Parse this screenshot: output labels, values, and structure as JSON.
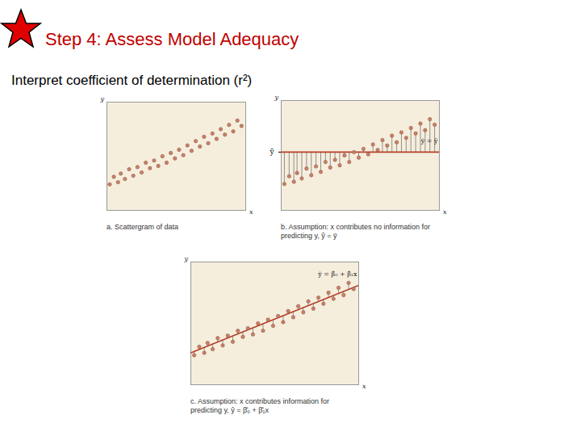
{
  "header": {
    "title": "Step 4:  Assess Model Adequacy",
    "subtitle": "Interpret coefficient of determination (r²)"
  },
  "chart_data": [
    {
      "type": "scatter",
      "caption": "a. Scattergram of data",
      "x_label": "x",
      "y_label": "y",
      "x": [
        0.2,
        0.5,
        0.8,
        1.0,
        1.3,
        1.6,
        1.9,
        2.2,
        2.5,
        2.8,
        3.1,
        3.4,
        3.7,
        4.0,
        4.3,
        4.6,
        4.9,
        5.2,
        5.5,
        5.8,
        6.1,
        6.4,
        6.7,
        7.0,
        7.3,
        7.6,
        7.9,
        8.2,
        8.5,
        8.8,
        9.1,
        9.4,
        9.7
      ],
      "values": [
        2.4,
        3.1,
        2.6,
        3.4,
        2.9,
        3.8,
        3.2,
        4.0,
        3.5,
        4.4,
        3.9,
        4.6,
        4.1,
        5.0,
        4.4,
        5.3,
        4.8,
        5.6,
        5.1,
        6.0,
        5.5,
        6.4,
        5.9,
        6.8,
        6.2,
        7.1,
        6.6,
        7.5,
        7.0,
        7.9,
        7.3,
        8.3,
        7.8
      ],
      "xlim": [
        0,
        10
      ],
      "ylim": [
        0,
        10
      ],
      "xticks": [],
      "yticks": [],
      "tick_labels": false,
      "color": "#c8826a",
      "marker": "circle"
    },
    {
      "type": "regression",
      "caption": "b. Assumption: x contributes no information for predicting y, ŷ = ȳ",
      "x_label": "x",
      "y_label": "y",
      "x": [
        0.2,
        0.5,
        0.8,
        1.0,
        1.3,
        1.6,
        1.9,
        2.2,
        2.5,
        2.8,
        3.1,
        3.4,
        3.7,
        4.0,
        4.3,
        4.6,
        4.9,
        5.2,
        5.5,
        5.8,
        6.1,
        6.4,
        6.7,
        7.0,
        7.3,
        7.6,
        7.9,
        8.2,
        8.5,
        8.8,
        9.1,
        9.4,
        9.7
      ],
      "values": [
        2.4,
        3.1,
        2.6,
        3.4,
        2.9,
        3.8,
        3.2,
        4.0,
        3.5,
        4.4,
        3.9,
        4.6,
        4.1,
        5.0,
        4.4,
        5.3,
        4.8,
        5.6,
        5.1,
        6.0,
        5.5,
        6.4,
        5.9,
        6.8,
        6.2,
        7.1,
        6.6,
        7.5,
        7.0,
        7.9,
        7.3,
        8.3,
        7.8
      ],
      "fit": {
        "x": [
          0,
          10
        ],
        "y": [
          5.3,
          5.3
        ],
        "label": "ŷ = ȳ"
      },
      "xlim": [
        0,
        10
      ],
      "ylim": [
        0,
        10
      ],
      "xticks": [],
      "yticks": [
        {
          "value": 5.3,
          "label": "ȳ"
        }
      ],
      "tick_labels": "y",
      "color": "#c8826a",
      "marker": "circle"
    },
    {
      "type": "regression",
      "caption": "c. Assumption: x contributes information for predicting y, ŷ = β̂₀ + β̂₁x",
      "x_label": "x",
      "y_label": "y",
      "x": [
        0.2,
        0.5,
        0.8,
        1.0,
        1.3,
        1.6,
        1.9,
        2.2,
        2.5,
        2.8,
        3.1,
        3.4,
        3.7,
        4.0,
        4.3,
        4.6,
        4.9,
        5.2,
        5.5,
        5.8,
        6.1,
        6.4,
        6.7,
        7.0,
        7.3,
        7.6,
        7.9,
        8.2,
        8.5,
        8.8,
        9.1,
        9.4,
        9.7
      ],
      "values": [
        2.4,
        3.1,
        2.6,
        3.4,
        2.9,
        3.8,
        3.2,
        4.0,
        3.5,
        4.4,
        3.9,
        4.6,
        4.1,
        5.0,
        4.4,
        5.3,
        4.8,
        5.6,
        5.1,
        6.0,
        5.5,
        6.4,
        5.9,
        6.8,
        6.2,
        7.1,
        6.6,
        7.5,
        7.0,
        7.9,
        7.3,
        8.3,
        7.8
      ],
      "fit": {
        "x": [
          0,
          10
        ],
        "y": [
          2.6,
          8.1
        ],
        "label": "ŷ = β̂₀ + β̂₁x"
      },
      "xlim": [
        0,
        10
      ],
      "ylim": [
        0,
        10
      ],
      "xticks": [],
      "yticks": [],
      "tick_labels": false,
      "color": "#c8826a",
      "marker": "circle"
    }
  ]
}
